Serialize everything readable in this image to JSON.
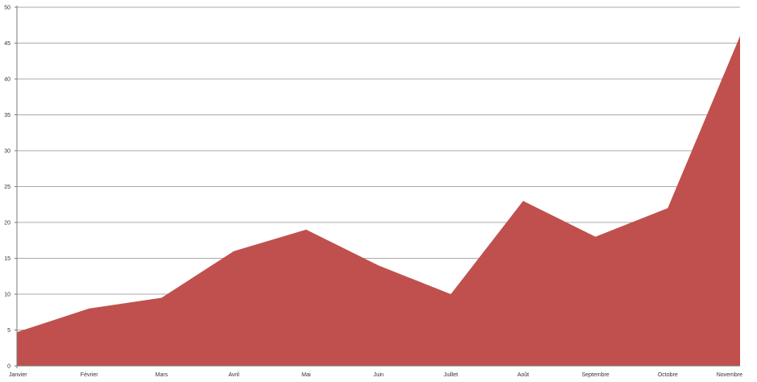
{
  "chart_data": {
    "type": "area",
    "categories": [
      "Janvier",
      "Février",
      "Mars",
      "Avril",
      "Mai",
      "Juin",
      "Juillet",
      "Août",
      "Septembre",
      "Octobre",
      "Novembre"
    ],
    "series": [
      {
        "values": [
          4.7,
          8,
          9.5,
          16,
          19,
          14,
          10,
          23,
          18,
          22,
          46
        ],
        "color": "#c0504d"
      }
    ],
    "ylim": [
      0,
      50
    ],
    "yticks": [
      0,
      5,
      10,
      15,
      20,
      25,
      30,
      35,
      40,
      45,
      50
    ],
    "grid": true,
    "legend": "none"
  }
}
